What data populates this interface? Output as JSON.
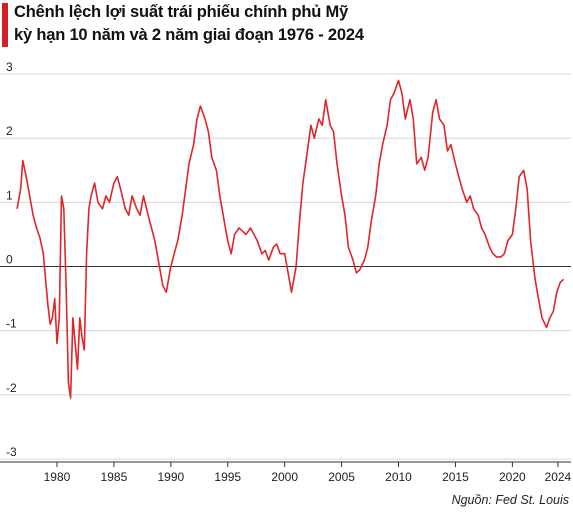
{
  "title": {
    "line1": "Chênh lệch lợi suất trái phiếu chính phủ Mỹ",
    "line2": "kỳ hạn 10 năm và 2 năm giai đoạn 1976 - 2024"
  },
  "source": "Nguồn: Fed St. Louis",
  "colors": {
    "line": "#e0252b",
    "accent": "#d32027",
    "grid": "#cfcfcf",
    "zero": "#333333",
    "text": "#222222"
  },
  "chart_data": {
    "type": "line",
    "title": "Chênh lệch lợi suất trái phiếu chính phủ Mỹ kỳ hạn 10 năm và 2 năm giai đoạn 1976 - 2024",
    "xlabel": "",
    "ylabel": "",
    "xlim": [
      1976.4,
      2024.8
    ],
    "ylim": [
      -3,
      3
    ],
    "grid": true,
    "legend": "none",
    "y_ticks": [
      3,
      2,
      1,
      0,
      -1,
      -2,
      -3
    ],
    "y_tick_labels": [
      "3",
      "2",
      "1",
      "0",
      "-1",
      "-2",
      "-3"
    ],
    "x_ticks": [
      1980,
      1985,
      1990,
      1995,
      2000,
      2005,
      2010,
      2015,
      2020,
      2024
    ],
    "x_tick_labels": [
      "1980",
      "1985",
      "1990",
      "1995",
      "2000",
      "2005",
      "2010",
      "2015",
      "2020",
      "2024"
    ],
    "series": [
      {
        "x": [
          1976.5,
          1976.8,
          1977.0,
          1977.3,
          1977.6,
          1977.9,
          1978.2,
          1978.5,
          1978.8,
          1979.0,
          1979.2,
          1979.4,
          1979.6,
          1979.8,
          1980.0,
          1980.2,
          1980.4,
          1980.6,
          1980.8,
          1981.0,
          1981.2,
          1981.4,
          1981.6,
          1981.8,
          1982.0,
          1982.2,
          1982.4,
          1982.6,
          1982.8,
          1983.0,
          1983.3,
          1983.6,
          1984.0,
          1984.3,
          1984.6,
          1985.0,
          1985.3,
          1985.6,
          1986.0,
          1986.3,
          1986.6,
          1987.0,
          1987.3,
          1987.6,
          1988.0,
          1988.3,
          1988.6,
          1989.0,
          1989.3,
          1989.6,
          1990.0,
          1990.3,
          1990.6,
          1991.0,
          1991.3,
          1991.6,
          1992.0,
          1992.3,
          1992.6,
          1993.0,
          1993.3,
          1993.6,
          1994.0,
          1994.3,
          1994.6,
          1995.0,
          1995.3,
          1995.6,
          1996.0,
          1996.3,
          1996.6,
          1997.0,
          1997.3,
          1997.6,
          1998.0,
          1998.3,
          1998.6,
          1999.0,
          1999.3,
          1999.6,
          2000.0,
          2000.3,
          2000.6,
          2001.0,
          2001.3,
          2001.6,
          2002.0,
          2002.3,
          2002.6,
          2003.0,
          2003.3,
          2003.6,
          2004.0,
          2004.3,
          2004.6,
          2005.0,
          2005.3,
          2005.6,
          2006.0,
          2006.3,
          2006.6,
          2007.0,
          2007.3,
          2007.6,
          2008.0,
          2008.3,
          2008.6,
          2009.0,
          2009.3,
          2009.6,
          2010.0,
          2010.3,
          2010.6,
          2011.0,
          2011.3,
          2011.6,
          2012.0,
          2012.3,
          2012.6,
          2013.0,
          2013.3,
          2013.6,
          2014.0,
          2014.3,
          2014.6,
          2015.0,
          2015.3,
          2015.6,
          2016.0,
          2016.3,
          2016.6,
          2017.0,
          2017.3,
          2017.6,
          2018.0,
          2018.3,
          2018.6,
          2019.0,
          2019.3,
          2019.6,
          2020.0,
          2020.3,
          2020.6,
          2021.0,
          2021.3,
          2021.6,
          2022.0,
          2022.3,
          2022.6,
          2023.0,
          2023.3,
          2023.6,
          2023.9,
          2024.2,
          2024.5
        ],
        "values": [
          0.9,
          1.2,
          1.65,
          1.4,
          1.1,
          0.8,
          0.6,
          0.45,
          0.2,
          -0.2,
          -0.6,
          -0.9,
          -0.8,
          -0.5,
          -1.2,
          -0.8,
          1.1,
          0.9,
          -0.3,
          -1.8,
          -2.05,
          -0.8,
          -1.2,
          -1.6,
          -0.8,
          -1.1,
          -1.3,
          0.2,
          0.9,
          1.1,
          1.3,
          1.0,
          0.9,
          1.1,
          1.0,
          1.3,
          1.4,
          1.2,
          0.9,
          0.8,
          1.1,
          0.9,
          0.8,
          1.1,
          0.8,
          0.6,
          0.4,
          0.0,
          -0.3,
          -0.4,
          0.0,
          0.2,
          0.4,
          0.8,
          1.2,
          1.6,
          1.9,
          2.3,
          2.5,
          2.3,
          2.1,
          1.7,
          1.5,
          1.1,
          0.8,
          0.4,
          0.2,
          0.5,
          0.6,
          0.55,
          0.5,
          0.6,
          0.5,
          0.4,
          0.2,
          0.25,
          0.1,
          0.3,
          0.35,
          0.2,
          0.2,
          -0.1,
          -0.4,
          0.0,
          0.7,
          1.3,
          1.8,
          2.2,
          2.0,
          2.3,
          2.2,
          2.6,
          2.2,
          2.1,
          1.6,
          1.1,
          0.8,
          0.3,
          0.1,
          -0.1,
          -0.05,
          0.1,
          0.3,
          0.7,
          1.1,
          1.6,
          1.9,
          2.2,
          2.6,
          2.7,
          2.9,
          2.7,
          2.3,
          2.6,
          2.3,
          1.6,
          1.7,
          1.5,
          1.7,
          2.4,
          2.6,
          2.3,
          2.2,
          1.8,
          1.9,
          1.6,
          1.4,
          1.2,
          1.0,
          1.1,
          0.9,
          0.8,
          0.6,
          0.5,
          0.3,
          0.2,
          0.15,
          0.15,
          0.2,
          0.4,
          0.5,
          0.9,
          1.4,
          1.5,
          1.2,
          0.4,
          -0.2,
          -0.5,
          -0.8,
          -0.95,
          -0.8,
          -0.7,
          -0.4,
          -0.25,
          -0.2
        ]
      }
    ]
  }
}
